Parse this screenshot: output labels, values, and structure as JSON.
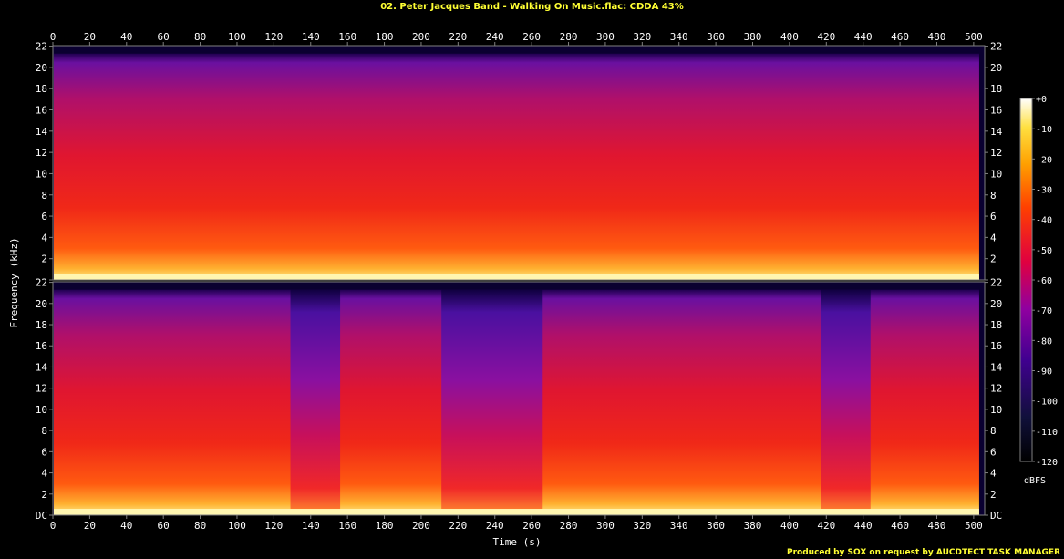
{
  "title": "02. Peter Jacques Band - Walking On Music.flac: CDDA 43%",
  "footer": "Produced by SOX on request by AUCDTECT TASK MANAGER",
  "colors": {
    "title": "#ffff33",
    "background": "#000000",
    "axis": "#808080"
  },
  "chart_data": {
    "type": "heatmap",
    "title": "02. Peter Jacques Band - Walking On Music.flac: CDDA 43%",
    "xlabel": "Time (s)",
    "ylabel": "Frequency (kHz)",
    "xlim": [
      0,
      506
    ],
    "ylim": [
      0,
      22.05
    ],
    "x_ticks": [
      0,
      20,
      40,
      60,
      80,
      100,
      120,
      140,
      160,
      180,
      200,
      220,
      240,
      260,
      280,
      300,
      320,
      340,
      360,
      380,
      400,
      420,
      440,
      460,
      480,
      500
    ],
    "y_tick_labels": [
      "DC",
      "2",
      "4",
      "6",
      "8",
      "10",
      "12",
      "14",
      "16",
      "18",
      "20",
      "22"
    ],
    "y_ticks": [
      0,
      2,
      4,
      6,
      8,
      10,
      12,
      14,
      16,
      18,
      20,
      22
    ],
    "channels": 2,
    "colorbar": {
      "label": "dBFS",
      "ticks": [
        "+0",
        "-10",
        "-20",
        "-30",
        "-40",
        "-50",
        "-60",
        "-70",
        "-80",
        "-90",
        "-100",
        "-110",
        "-120"
      ],
      "range": [
        -120,
        0
      ]
    },
    "channel2_quiet_segments_s": [
      [
        129,
        156
      ],
      [
        211,
        266
      ],
      [
        417,
        444
      ]
    ]
  }
}
